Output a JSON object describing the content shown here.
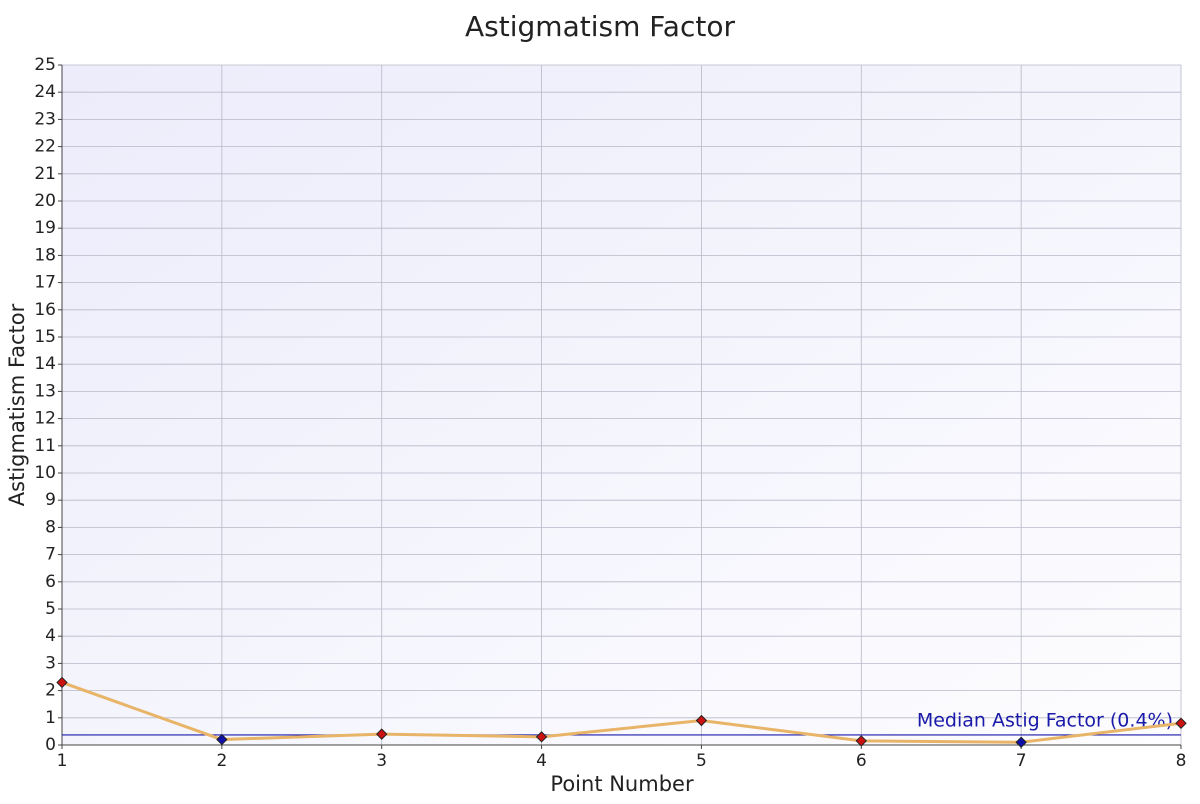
{
  "chart_data": {
    "type": "line",
    "title": "Astigmatism Factor",
    "x_label": "Point Number",
    "y_label": "Astigmatism Factor",
    "x": [
      1,
      2,
      3,
      4,
      5,
      6,
      7,
      8
    ],
    "series": [
      {
        "color": "#e8b468",
        "values": [
          2.3,
          0.2,
          0.4,
          0.3,
          0.9,
          0.15,
          0.1,
          0.8
        ],
        "marker_colors": [
          "#cc1111",
          "#1111aa",
          "#cc1111",
          "#cc1111",
          "#cc1111",
          "#cc1111",
          "#1111aa",
          "#cc1111"
        ]
      }
    ],
    "reference_line": {
      "value": 0.37,
      "label": "Median Astig Factor (0.4%)",
      "color": "#1a1aaa"
    },
    "xlim": [
      1,
      8
    ],
    "xticks": [
      1,
      2,
      3,
      4,
      5,
      6,
      7,
      8
    ],
    "ylim": [
      0,
      25
    ],
    "yticks": [
      0,
      1,
      2,
      3,
      4,
      5,
      6,
      7,
      8,
      9,
      10,
      11,
      12,
      13,
      14,
      15,
      16,
      17,
      18,
      19,
      20,
      21,
      22,
      23,
      24,
      25
    ],
    "grid": true
  }
}
